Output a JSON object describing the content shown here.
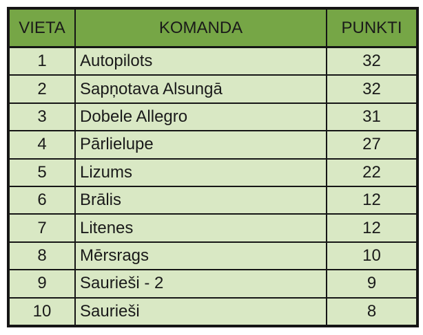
{
  "table": {
    "headers": {
      "place": "VIETA",
      "team": "KOMANDA",
      "points": "PUNKTI"
    },
    "rows": [
      {
        "place": "1",
        "team": "Autopilots",
        "points": "32"
      },
      {
        "place": "2",
        "team": "Sapņotava Alsungā",
        "points": "32"
      },
      {
        "place": "3",
        "team": "Dobele Allegro",
        "points": "31"
      },
      {
        "place": "4",
        "team": "Pārlielupe",
        "points": "27"
      },
      {
        "place": "5",
        "team": "Lizums",
        "points": "22"
      },
      {
        "place": "6",
        "team": "Brālis",
        "points": "12"
      },
      {
        "place": "7",
        "team": "Litenes",
        "points": "12"
      },
      {
        "place": "8",
        "team": "Mērsrags",
        "points": "10"
      },
      {
        "place": "9",
        "team": "Saurieši - 2",
        "points": "9"
      },
      {
        "place": "10",
        "team": "Saurieši",
        "points": "8"
      }
    ],
    "colors": {
      "header_background": "#76a646",
      "row_background": "#d9e8c4",
      "border": "#151515"
    }
  }
}
